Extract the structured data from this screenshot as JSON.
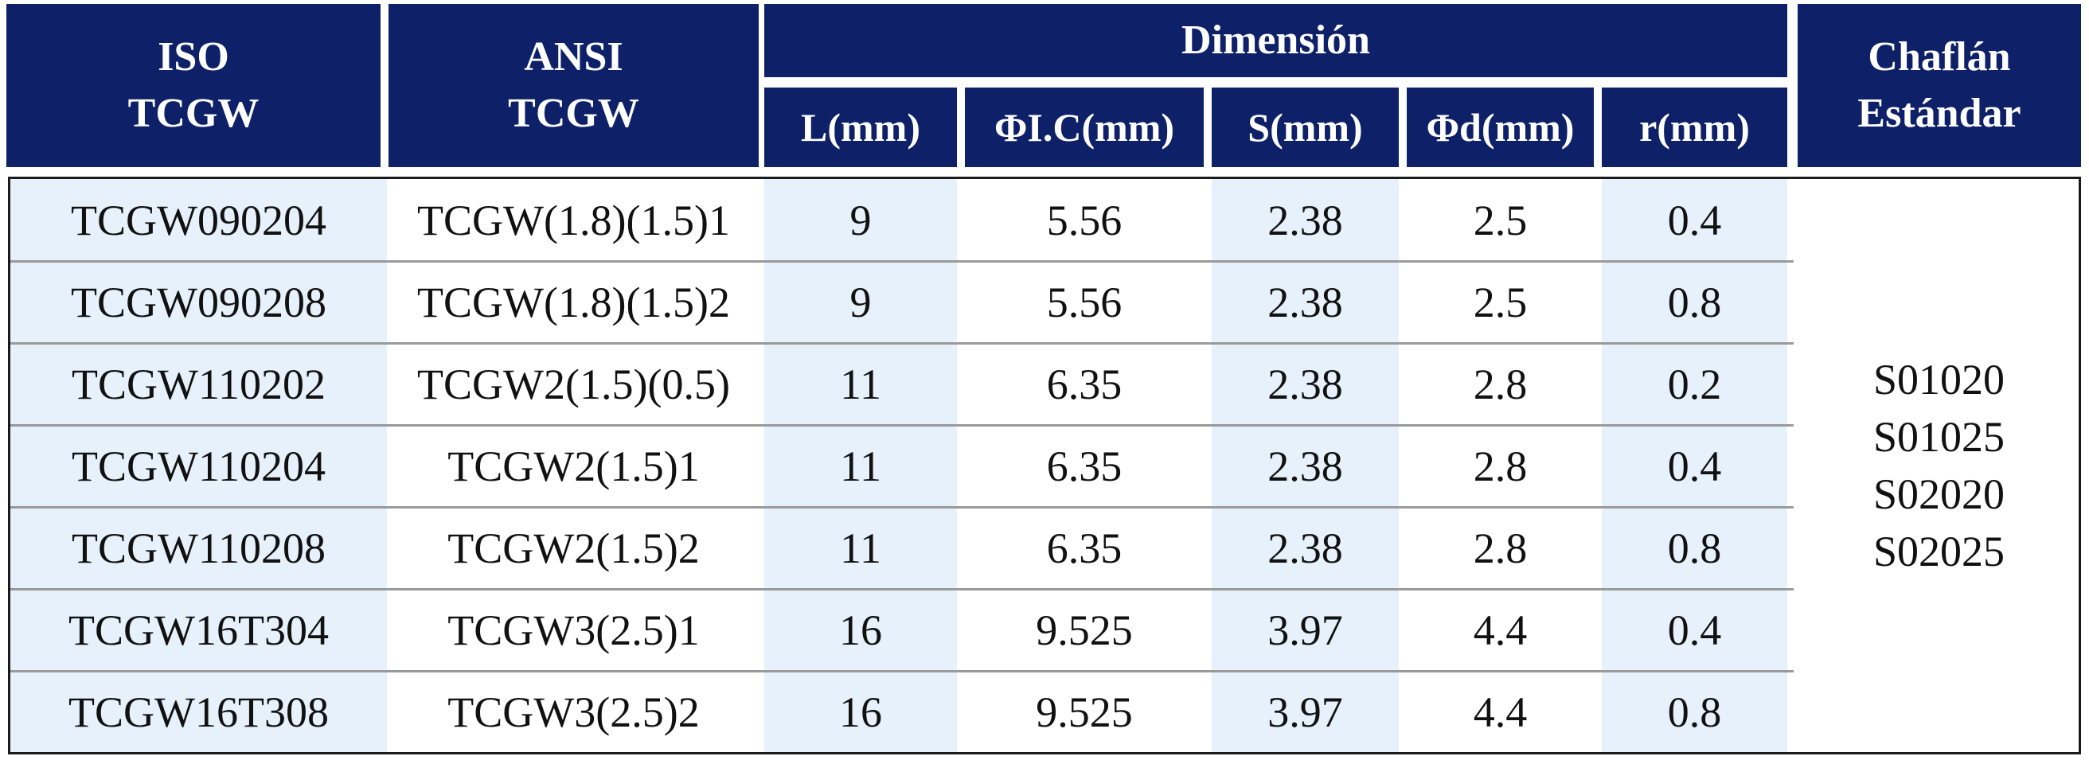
{
  "header": {
    "iso_line1": "ISO",
    "iso_line2": "TCGW",
    "ansi_line1": "ANSI",
    "ansi_line2": "TCGW",
    "dimension": "Dimensión",
    "sub": {
      "l": "L(mm)",
      "ic": "ΦI.C(mm)",
      "s": "S(mm)",
      "d": "Φd(mm)",
      "r": "r(mm)"
    },
    "chamfer_line1": "Chaflán",
    "chamfer_line2": "Estándar"
  },
  "rows": [
    {
      "iso": "TCGW090204",
      "ansi": "TCGW(1.8)(1.5)1",
      "l": "9",
      "ic": "5.56",
      "s": "2.38",
      "d": "2.5",
      "r": "0.4"
    },
    {
      "iso": "TCGW090208",
      "ansi": "TCGW(1.8)(1.5)2",
      "l": "9",
      "ic": "5.56",
      "s": "2.38",
      "d": "2.5",
      "r": "0.8"
    },
    {
      "iso": "TCGW110202",
      "ansi": "TCGW2(1.5)(0.5)",
      "l": "11",
      "ic": "6.35",
      "s": "2.38",
      "d": "2.8",
      "r": "0.2"
    },
    {
      "iso": "TCGW110204",
      "ansi": "TCGW2(1.5)1",
      "l": "11",
      "ic": "6.35",
      "s": "2.38",
      "d": "2.8",
      "r": "0.4"
    },
    {
      "iso": "TCGW110208",
      "ansi": "TCGW2(1.5)2",
      "l": "11",
      "ic": "6.35",
      "s": "2.38",
      "d": "2.8",
      "r": "0.8"
    },
    {
      "iso": "TCGW16T304",
      "ansi": "TCGW3(2.5)1",
      "l": "16",
      "ic": "9.525",
      "s": "3.97",
      "d": "4.4",
      "r": "0.4"
    },
    {
      "iso": "TCGW16T308",
      "ansi": "TCGW3(2.5)2",
      "l": "16",
      "ic": "9.525",
      "s": "3.97",
      "d": "4.4",
      "r": "0.8"
    }
  ],
  "chamfer_values": [
    "S01020",
    "S01025",
    "S02020",
    "S02025"
  ],
  "colors": {
    "header_bg": "#0e2168",
    "header_text": "#ffffff",
    "shaded_column": "#e6f1fb",
    "row_separator": "#9a9a9a"
  }
}
